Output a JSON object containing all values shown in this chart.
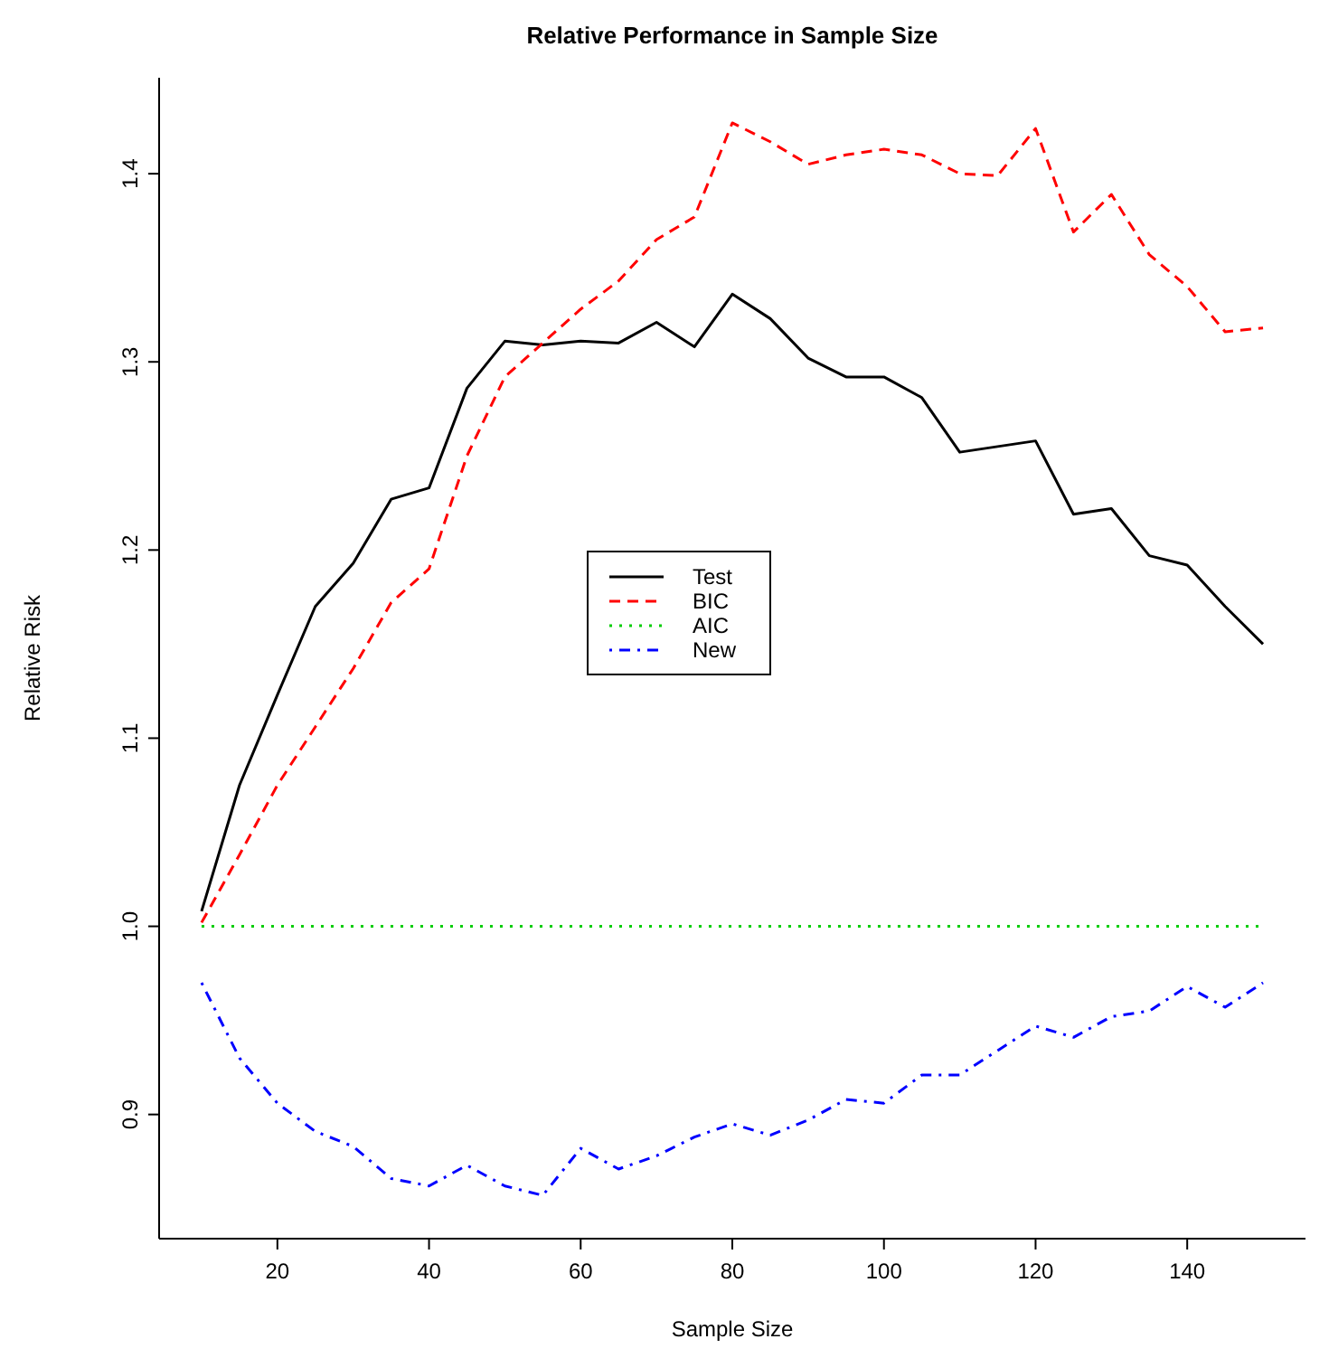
{
  "chart_data": {
    "type": "line",
    "title": "Relative Performance in Sample Size",
    "xlabel": "Sample Size",
    "ylabel": "Relative Risk",
    "x": [
      10,
      15,
      20,
      25,
      30,
      35,
      40,
      45,
      50,
      55,
      60,
      65,
      70,
      75,
      80,
      85,
      90,
      95,
      100,
      105,
      110,
      115,
      120,
      125,
      130,
      135,
      140,
      145,
      150
    ],
    "series": [
      {
        "name": "Test",
        "color": "#000000",
        "line_style": "solid",
        "values": [
          1.008,
          1.075,
          1.123,
          1.17,
          1.193,
          1.227,
          1.233,
          1.286,
          1.311,
          1.309,
          1.311,
          1.31,
          1.321,
          1.308,
          1.336,
          1.323,
          1.302,
          1.292,
          1.292,
          1.281,
          1.252,
          1.255,
          1.258,
          1.219,
          1.222,
          1.197,
          1.192,
          1.17,
          1.15
        ]
      },
      {
        "name": "BIC",
        "color": "#ff0000",
        "line_style": "dashed",
        "values": [
          1.002,
          1.038,
          1.075,
          1.106,
          1.137,
          1.172,
          1.19,
          1.25,
          1.292,
          1.31,
          1.328,
          1.343,
          1.365,
          1.377,
          1.427,
          1.417,
          1.405,
          1.41,
          1.413,
          1.41,
          1.4,
          1.399,
          1.424,
          1.369,
          1.389,
          1.357,
          1.34,
          1.316,
          1.318
        ]
      },
      {
        "name": "AIC",
        "color": "#00cd00",
        "line_style": "dotted",
        "values": [
          1,
          1,
          1,
          1,
          1,
          1,
          1,
          1,
          1,
          1,
          1,
          1,
          1,
          1,
          1,
          1,
          1,
          1,
          1,
          1,
          1,
          1,
          1,
          1,
          1,
          1,
          1,
          1,
          1
        ]
      },
      {
        "name": "New",
        "color": "#0000ff",
        "line_style": "dashdot",
        "values": [
          0.97,
          0.93,
          0.906,
          0.891,
          0.883,
          0.866,
          0.862,
          0.873,
          0.862,
          0.857,
          0.882,
          0.871,
          0.878,
          0.888,
          0.895,
          0.889,
          0.897,
          0.908,
          0.906,
          0.921,
          0.921,
          0.934,
          0.947,
          0.941,
          0.952,
          0.955,
          0.968,
          0.957,
          0.97
        ]
      }
    ],
    "xlim": [
      4.4,
      155.6
    ],
    "xticks": [
      20,
      40,
      60,
      80,
      100,
      120,
      140
    ],
    "ylim": [
      0.834,
      1.451
    ],
    "yticks": [
      0.9,
      {
        "value": 1,
        "label": "1.0"
      },
      1.1,
      1.2,
      1.3,
      1.4
    ],
    "legend": "center",
    "grid": false,
    "marker": "none"
  }
}
